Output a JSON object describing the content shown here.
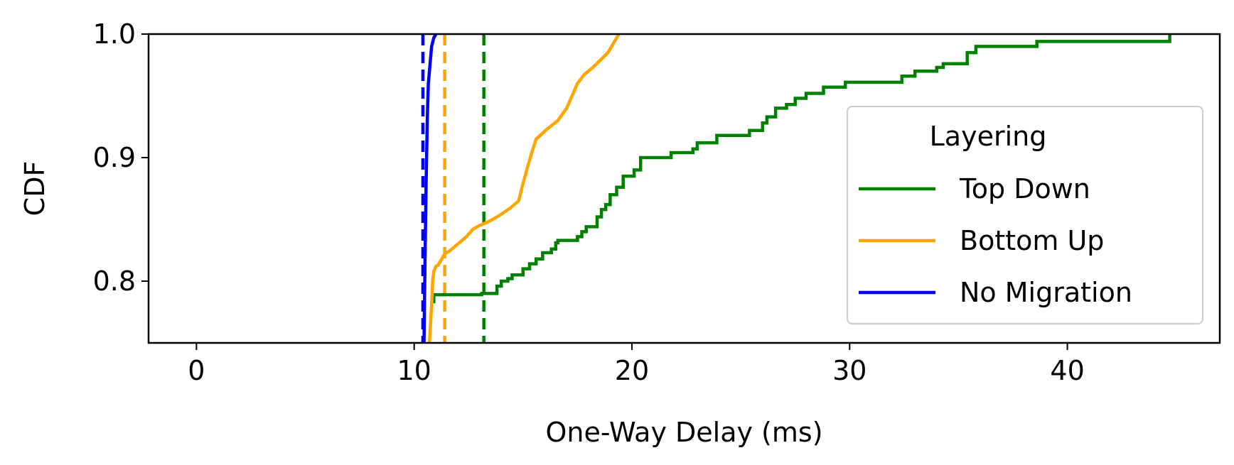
{
  "chart_data": {
    "type": "line",
    "xlabel": "One-Way Delay (ms)",
    "ylabel": "CDF",
    "xlim": [
      -2.2,
      47
    ],
    "ylim": [
      0.75,
      1.0
    ],
    "xticks": [
      0,
      10,
      20,
      30,
      40
    ],
    "yticks": [
      0.8,
      0.9,
      1.0
    ],
    "xtick_labels": [
      "0",
      "10",
      "20",
      "30",
      "40"
    ],
    "ytick_labels": [
      "0.8",
      "0.9",
      "1.0"
    ],
    "grid": false,
    "legend": {
      "title": "Layering",
      "placement": "lower-right",
      "entries": [
        "Top Down",
        "Bottom Up",
        "No Migration"
      ]
    },
    "series": [
      {
        "name": "Top Down",
        "color": "#008000",
        "step": true,
        "x": [
          10.9,
          10.9,
          11.1,
          13.1,
          13.8,
          14.0,
          14.3,
          14.5,
          15.0,
          15.3,
          15.6,
          15.9,
          16.3,
          16.5,
          16.6,
          17.5,
          17.7,
          17.9,
          18.4,
          18.6,
          18.8,
          19.0,
          19.3,
          19.6,
          20.1,
          20.4,
          21.8,
          22.8,
          23.0,
          23.9,
          24.1,
          25.4,
          26.0,
          26.2,
          26.6,
          27.1,
          27.5,
          28.0,
          28.8,
          29.8,
          31.0,
          32.4,
          33.0,
          34.0,
          34.3,
          35.4,
          35.8,
          38.6,
          44.7
        ],
        "y": [
          0.782,
          0.789,
          0.789,
          0.79,
          0.796,
          0.8,
          0.802,
          0.805,
          0.81,
          0.814,
          0.818,
          0.823,
          0.826,
          0.831,
          0.833,
          0.836,
          0.84,
          0.844,
          0.852,
          0.858,
          0.862,
          0.87,
          0.876,
          0.885,
          0.89,
          0.9,
          0.904,
          0.907,
          0.912,
          0.918,
          0.918,
          0.922,
          0.928,
          0.933,
          0.94,
          0.943,
          0.948,
          0.952,
          0.957,
          0.961,
          0.961,
          0.966,
          0.97,
          0.973,
          0.976,
          0.985,
          0.99,
          0.994,
          1.0
        ]
      },
      {
        "name": "Bottom Up",
        "color": "#FFA500",
        "step": false,
        "x": [
          10.7,
          10.8,
          10.85,
          10.9,
          11.0,
          11.1,
          11.4,
          11.6,
          12.0,
          12.4,
          12.7,
          13.0,
          13.4,
          13.9,
          14.4,
          14.8,
          15.0,
          15.2,
          15.4,
          15.6,
          16.1,
          16.6,
          17.0,
          17.3,
          17.5,
          17.8,
          18.2,
          18.5,
          18.9,
          19.2,
          19.4
        ],
        "y": [
          0.75,
          0.78,
          0.8,
          0.808,
          0.812,
          0.813,
          0.822,
          0.824,
          0.83,
          0.836,
          0.842,
          0.845,
          0.848,
          0.853,
          0.859,
          0.865,
          0.879,
          0.892,
          0.904,
          0.915,
          0.923,
          0.93,
          0.94,
          0.952,
          0.96,
          0.967,
          0.973,
          0.978,
          0.985,
          0.994,
          1.0
        ]
      },
      {
        "name": "No Migration",
        "color": "#0000FF",
        "step": false,
        "x": [
          10.45,
          10.5,
          10.55,
          10.6,
          10.65,
          10.8,
          10.9,
          11.0
        ],
        "y": [
          0.75,
          0.82,
          0.88,
          0.93,
          0.96,
          0.99,
          0.997,
          1.0
        ]
      }
    ],
    "reference_lines": [
      {
        "x": 10.4,
        "color": "#0000FF",
        "style": "dashed"
      },
      {
        "x": 11.4,
        "color": "#FFA500",
        "style": "dashed"
      },
      {
        "x": 13.2,
        "color": "#008000",
        "style": "dashed"
      }
    ]
  }
}
